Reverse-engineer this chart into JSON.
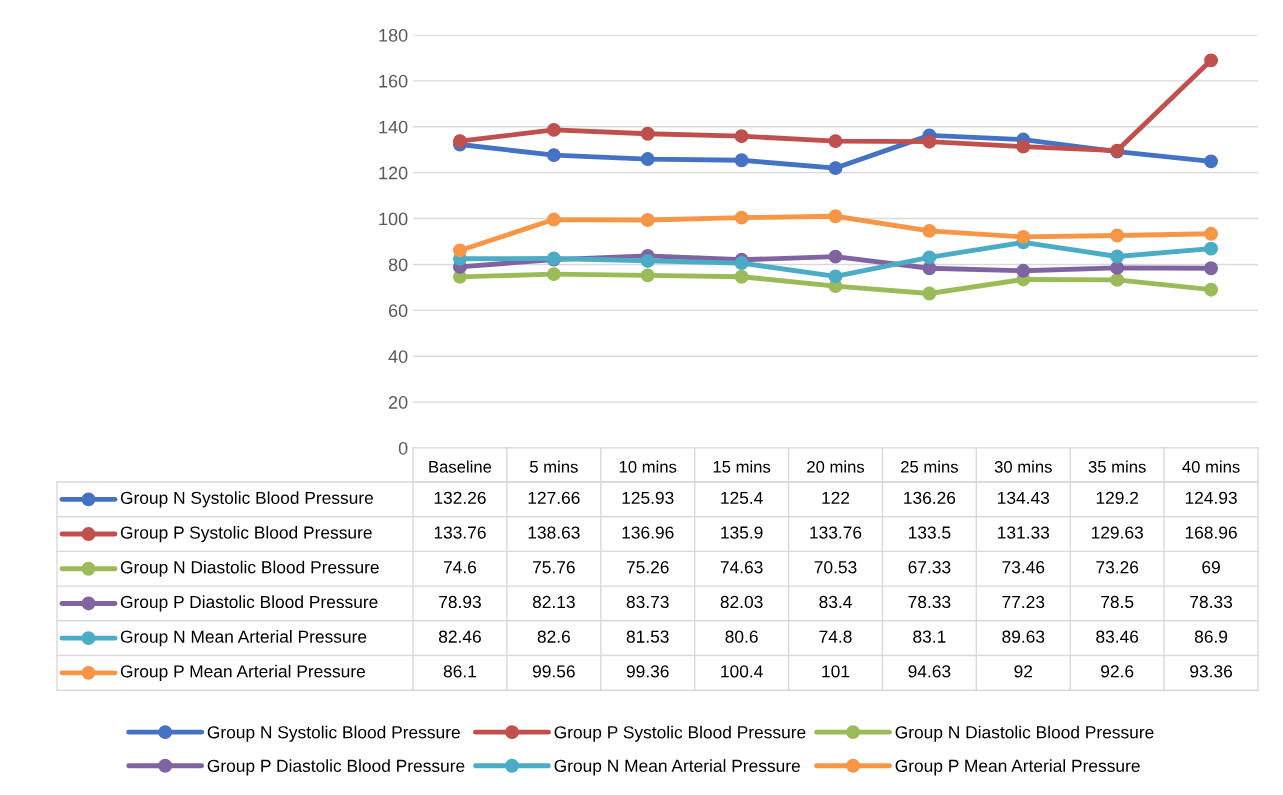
{
  "chart_data": {
    "type": "line",
    "categories": [
      "Baseline",
      "5 mins",
      "10 mins",
      "15 mins",
      "20 mins",
      "25 mins",
      "30 mins",
      "35 mins",
      "40 mins"
    ],
    "series": [
      {
        "name": "Group N Systolic Blood Pressure",
        "color": "#4472c4",
        "values": [
          132.26,
          127.66,
          125.93,
          125.4,
          122,
          136.26,
          134.43,
          129.2,
          124.93
        ]
      },
      {
        "name": "Group P Systolic Blood Pressure",
        "color": "#c0504d",
        "values": [
          133.76,
          138.63,
          136.96,
          135.9,
          133.76,
          133.5,
          131.33,
          129.63,
          168.96
        ]
      },
      {
        "name": "Group N Diastolic Blood Pressure",
        "color": "#9bbb59",
        "values": [
          74.6,
          75.76,
          75.26,
          74.63,
          70.53,
          67.33,
          73.46,
          73.26,
          69
        ]
      },
      {
        "name": "Group P Diastolic Blood Pressure",
        "color": "#8064a2",
        "values": [
          78.93,
          82.13,
          83.73,
          82.03,
          83.4,
          78.33,
          77.23,
          78.5,
          78.33
        ]
      },
      {
        "name": "Group N Mean Arterial Pressure",
        "color": "#4bacc6",
        "values": [
          82.46,
          82.6,
          81.53,
          80.6,
          74.8,
          83.1,
          89.63,
          83.46,
          86.9
        ]
      },
      {
        "name": "Group P Mean Arterial Pressure",
        "color": "#f79646",
        "values": [
          86.1,
          99.56,
          99.36,
          100.4,
          101,
          94.63,
          92,
          92.6,
          93.36
        ]
      }
    ],
    "ylim": [
      0,
      180
    ],
    "yticks": [
      0,
      20,
      40,
      60,
      80,
      100,
      120,
      140,
      160,
      180
    ],
    "grid": "y",
    "marker": "circle",
    "line_style": "solid",
    "legend": "bottom",
    "data_labels": true
  }
}
